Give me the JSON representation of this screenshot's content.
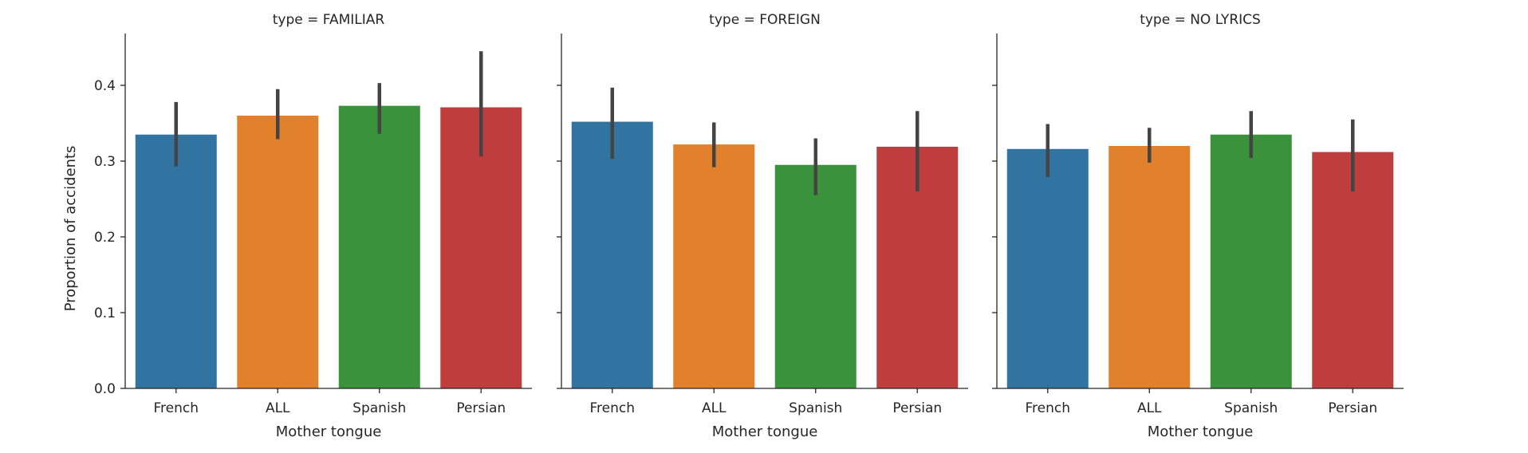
{
  "chart_data": {
    "type": "bar",
    "facet_label": "type",
    "categories": [
      "French",
      "ALL",
      "Spanish",
      "Persian"
    ],
    "colors": [
      "#3274a1",
      "#e1812c",
      "#3a923a",
      "#c03d3e"
    ],
    "error_color": "#444444",
    "ylabel": "Proportion of accidents",
    "xlabel": "Mother tongue",
    "ylim": [
      0,
      0.46
    ],
    "yticks": [
      "0.0",
      "0.1",
      "0.2",
      "0.3",
      "0.4"
    ],
    "grid": false,
    "legend": "none",
    "panels": [
      {
        "title": "type = FAMILIAR",
        "values": [
          0.335,
          0.36,
          0.373,
          0.371
        ],
        "ci_low": [
          0.293,
          0.329,
          0.336,
          0.306
        ],
        "ci_high": [
          0.378,
          0.395,
          0.403,
          0.445
        ]
      },
      {
        "title": "type = FOREIGN",
        "values": [
          0.352,
          0.322,
          0.295,
          0.319
        ],
        "ci_low": [
          0.303,
          0.292,
          0.255,
          0.26
        ],
        "ci_high": [
          0.397,
          0.351,
          0.33,
          0.366
        ]
      },
      {
        "title": "type = NO LYRICS",
        "values": [
          0.316,
          0.32,
          0.335,
          0.312
        ],
        "ci_low": [
          0.279,
          0.298,
          0.304,
          0.26
        ],
        "ci_high": [
          0.349,
          0.344,
          0.366,
          0.355
        ]
      }
    ]
  }
}
